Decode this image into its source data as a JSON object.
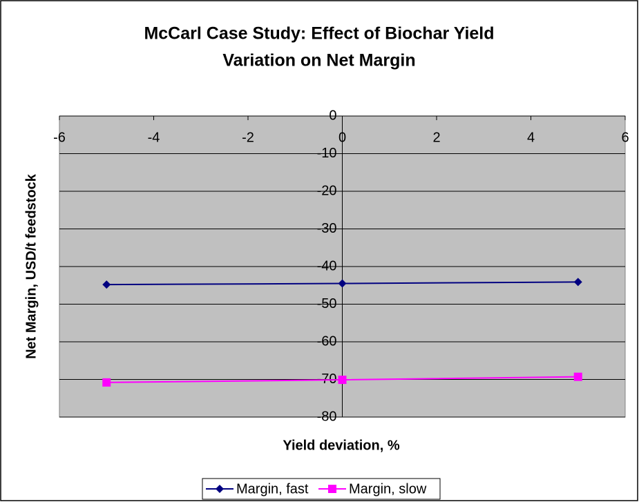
{
  "chart_data": {
    "type": "line",
    "title": [
      "McCarl Case Study: Effect of Biochar Yield",
      "Variation on Net Margin"
    ],
    "x_label": "Yield deviation, %",
    "y_label": "Net Margin, USD/t feedstock",
    "x": [
      -5,
      0,
      5
    ],
    "series": [
      {
        "name": "Margin, fast",
        "color": "#000080",
        "marker": "diamond",
        "values": [
          -44.8,
          -44.5,
          -44.1
        ]
      },
      {
        "name": "Margin, slow",
        "color": "#ff00ff",
        "marker": "square",
        "values": [
          -70.8,
          -70.1,
          -69.3
        ]
      }
    ],
    "xlim": [
      -6,
      6
    ],
    "xticks": [
      -6,
      -4,
      -2,
      0,
      2,
      4,
      6
    ],
    "ylim": [
      -80,
      0
    ],
    "yticks": [
      0,
      -10,
      -20,
      -30,
      -40,
      -50,
      -60,
      -70,
      -80
    ],
    "grid": true,
    "legend": "bottom",
    "plot_background": "#c0c0c0"
  }
}
